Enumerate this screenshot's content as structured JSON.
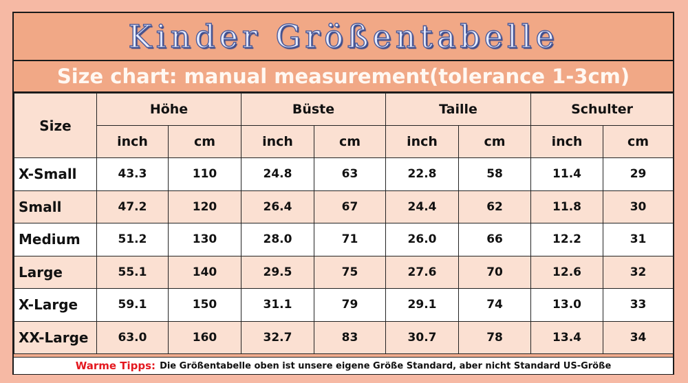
{
  "title": "Kinder Größentabelle",
  "subtitle": "Size chart: manual measurement(tolerance 1-3cm)",
  "table": {
    "size_header": "Size",
    "groups": [
      "Höhe",
      "Büste",
      "Taille",
      "Schulter"
    ],
    "units": [
      "inch",
      "cm",
      "inch",
      "cm",
      "inch",
      "cm",
      "inch",
      "cm"
    ],
    "rows": [
      {
        "size": "X-Small",
        "values": [
          "43.3",
          "110",
          "24.8",
          "63",
          "22.8",
          "58",
          "11.4",
          "29"
        ]
      },
      {
        "size": "Small",
        "values": [
          "47.2",
          "120",
          "26.4",
          "67",
          "24.4",
          "62",
          "11.8",
          "30"
        ]
      },
      {
        "size": "Medium",
        "values": [
          "51.2",
          "130",
          "28.0",
          "71",
          "26.0",
          "66",
          "12.2",
          "31"
        ]
      },
      {
        "size": "Large",
        "values": [
          "55.1",
          "140",
          "29.5",
          "75",
          "27.6",
          "70",
          "12.6",
          "32"
        ]
      },
      {
        "size": "X-Large",
        "values": [
          "59.1",
          "150",
          "31.1",
          "79",
          "29.1",
          "74",
          "13.0",
          "33"
        ]
      },
      {
        "size": "XX-Large",
        "values": [
          "63.0",
          "160",
          "32.7",
          "83",
          "30.7",
          "78",
          "13.4",
          "34"
        ]
      }
    ]
  },
  "note": {
    "label": "Warme Tipps:",
    "text": "Die Größentabelle oben ist unsere eigene Größe Standard, aber nicht Standard US-Größe"
  },
  "colors": {
    "background": "#f6b9a4",
    "header_fill": "#f1a886",
    "alt_row_fill": "#fbe0d2",
    "note_label": "#e4181f"
  }
}
